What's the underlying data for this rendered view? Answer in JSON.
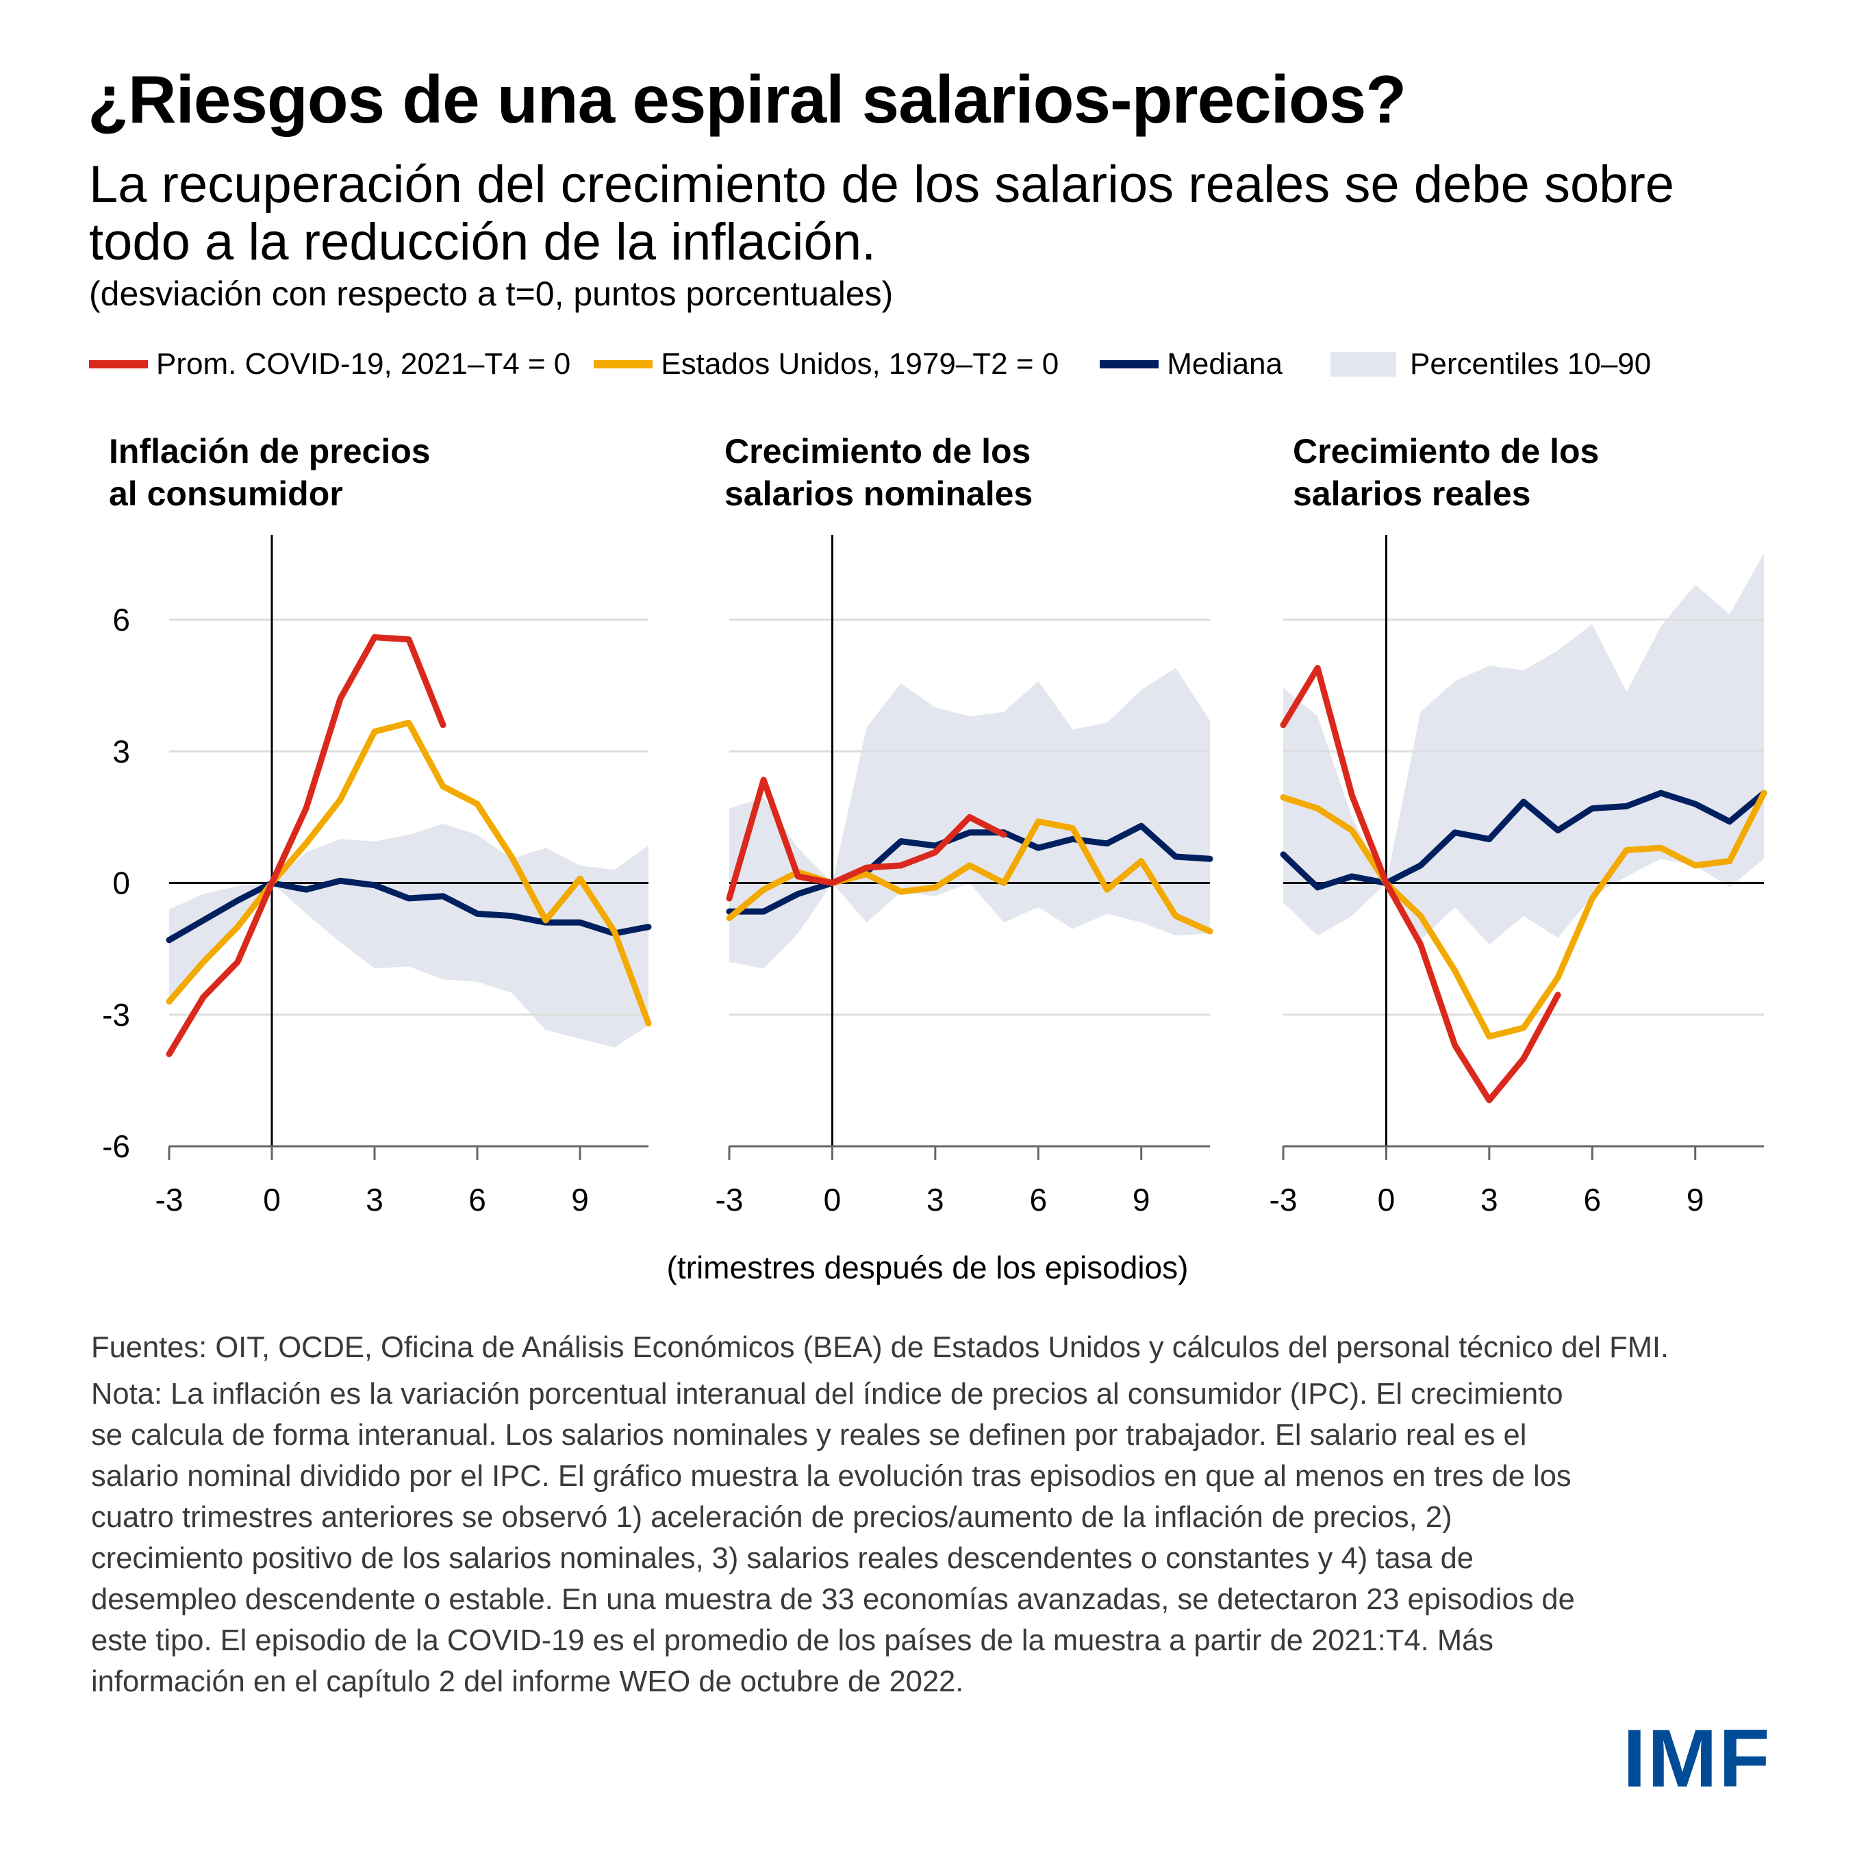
{
  "header": {
    "title": "¿Riesgos de una espiral salarios-precios?",
    "subtitle": "La recuperación del crecimiento de los salarios reales se debe sobre todo a la reducción de la inflación.",
    "units": "(desviación con respecto a t=0, puntos porcentuales)"
  },
  "legend": [
    {
      "label": "Prom. COVID-19, 2021–T4 = 0",
      "type": "line",
      "color": "#DA291C"
    },
    {
      "label": "Estados Unidos, 1979–T2 = 0",
      "type": "line",
      "color": "#F2A900"
    },
    {
      "label": "Mediana",
      "type": "line",
      "color": "#001F5F"
    },
    {
      "label": "Percentiles 10–90",
      "type": "area",
      "color": "#E3E6EE"
    }
  ],
  "footer": {
    "sources": "Fuentes: OIT, OCDE, Oficina de Análisis Económicos (BEA) de Estados Unidos y cálculos del personal técnico del FMI.",
    "note": "Nota: La inflación es la variación porcentual interanual del índice de precios al consumidor (IPC). El crecimiento se calcula de forma interanual. Los salarios nominales y reales se definen por trabajador. El salario real es el salario nominal dividido por el IPC. El gráfico muestra la evolución tras episodios en que al menos en tres de los cuatro trimestres anteriores se observó 1) aceleración de precios/aumento de la inflación de precios, 2) crecimiento positivo de los salarios nominales, 3) salarios reales descendentes o constantes y 4) tasa de desempleo descendente o estable. En una muestra de 33 economías avanzadas, se detectaron 23 episodios de este tipo. El episodio de la COVID-19 es el promedio de los países de la muestra a partir de 2021:T4. Más información en el capítulo 2 del informe WEO de octubre de 2022.",
    "logo": "IMF"
  },
  "chart_data": {
    "type": "line",
    "xlabel": "(trimestres después de los episodios)",
    "ylabel": "desviación con respecto a t=0, puntos porcentuales",
    "x": [
      -3,
      -2,
      -1,
      0,
      1,
      2,
      3,
      4,
      5,
      6,
      7,
      8,
      9,
      10,
      11
    ],
    "xlim": [
      -3,
      11
    ],
    "ylim": [
      -6,
      6
    ],
    "x_ticks": [
      -3,
      0,
      3,
      6,
      9
    ],
    "y_ticks": [
      6,
      3,
      0,
      -3,
      -6
    ],
    "y_tick_labels": [
      "6",
      "3",
      "0",
      "-3",
      "-6"
    ],
    "x_tick_labels": [
      "-3",
      "0",
      "3",
      "6",
      "9"
    ],
    "grid": "horizontal",
    "legend_position": "top",
    "panels": [
      {
        "title": "Inflación de precios al consumidor",
        "band": {
          "name": "Percentiles 10–90",
          "upper": [
            -0.6,
            -0.25,
            -0.07,
            0,
            0.7,
            1.0,
            0.95,
            1.1,
            1.35,
            1.1,
            0.55,
            0.8,
            0.4,
            0.3,
            0.85
          ],
          "lower": [
            -2.7,
            -1.9,
            -1.0,
            0,
            -0.7,
            -1.35,
            -1.95,
            -1.9,
            -2.2,
            -2.25,
            -2.5,
            -3.35,
            -3.55,
            -3.75,
            -3.25
          ]
        },
        "series": [
          {
            "name": "Prom. COVID-19, 2021–T4 = 0",
            "values": [
              -3.9,
              -2.6,
              -1.8,
              0,
              1.7,
              4.2,
              5.6,
              5.55,
              3.6,
              null,
              null,
              null,
              null,
              null,
              null
            ]
          },
          {
            "name": "Estados Unidos, 1979–T2 = 0",
            "values": [
              -2.7,
              -1.8,
              -1.0,
              0,
              0.9,
              1.9,
              3.45,
              3.65,
              2.2,
              1.8,
              0.6,
              -0.85,
              0.1,
              -1.1,
              -3.2
            ]
          },
          {
            "name": "Mediana",
            "values": [
              -1.3,
              -0.85,
              -0.4,
              0,
              -0.15,
              0.05,
              -0.05,
              -0.35,
              -0.3,
              -0.7,
              -0.75,
              -0.9,
              -0.9,
              -1.15,
              -1.0
            ]
          }
        ]
      },
      {
        "title": "Crecimiento de los salarios nominales",
        "band": {
          "name": "Percentiles 10–90",
          "upper": [
            1.7,
            1.95,
            0.8,
            0,
            3.55,
            4.55,
            4.0,
            3.8,
            3.9,
            4.6,
            3.5,
            3.65,
            4.4,
            4.9,
            3.7
          ],
          "lower": [
            -1.8,
            -1.95,
            -1.15,
            0,
            -0.9,
            -0.2,
            -0.3,
            0.0,
            -0.9,
            -0.55,
            -1.05,
            -0.7,
            -0.9,
            -1.2,
            -1.15
          ]
        },
        "series": [
          {
            "name": "Prom. COVID-19, 2021–T4 = 0",
            "values": [
              -0.35,
              2.35,
              0.15,
              0,
              0.35,
              0.4,
              0.7,
              1.5,
              1.1,
              null,
              null,
              null,
              null,
              null,
              null
            ]
          },
          {
            "name": "Estados Unidos, 1979–T2 = 0",
            "values": [
              -0.8,
              -0.15,
              0.25,
              0,
              0.2,
              -0.2,
              -0.1,
              0.4,
              0.0,
              1.4,
              1.25,
              -0.15,
              0.5,
              -0.75,
              -1.1
            ]
          },
          {
            "name": "Mediana",
            "values": [
              -0.65,
              -0.65,
              -0.25,
              0,
              0.25,
              0.95,
              0.85,
              1.15,
              1.15,
              0.8,
              1.0,
              0.9,
              1.3,
              0.6,
              0.55
            ]
          }
        ]
      },
      {
        "title": "Crecimiento de los salarios reales",
        "band": {
          "name": "Percentiles 10–90",
          "upper": [
            4.45,
            3.8,
            1.5,
            0,
            3.9,
            4.6,
            4.95,
            4.85,
            5.3,
            5.9,
            4.35,
            5.85,
            6.8,
            6.12,
            7.52
          ],
          "lower": [
            -0.45,
            -1.2,
            -0.75,
            0,
            -1.3,
            -0.55,
            -1.4,
            -0.75,
            -1.25,
            -0.3,
            0.15,
            0.55,
            0.4,
            -0.1,
            0.55
          ]
        },
        "series": [
          {
            "name": "Prom. COVID-19, 2021–T4 = 0",
            "values": [
              3.6,
              4.9,
              2.0,
              0,
              -1.4,
              -3.7,
              -4.95,
              -4.0,
              -2.55,
              null,
              null,
              null,
              null,
              null,
              null
            ]
          },
          {
            "name": "Estados Unidos, 1979–T2 = 0",
            "values": [
              1.95,
              1.7,
              1.2,
              0,
              -0.75,
              -2.0,
              -3.5,
              -3.3,
              -2.15,
              -0.35,
              0.75,
              0.8,
              0.4,
              0.5,
              2.05
            ]
          },
          {
            "name": "Mediana",
            "values": [
              0.65,
              -0.1,
              0.15,
              0,
              0.4,
              1.15,
              1.0,
              1.85,
              1.2,
              1.7,
              1.75,
              2.05,
              1.8,
              1.4,
              2.05
            ]
          }
        ]
      }
    ]
  }
}
